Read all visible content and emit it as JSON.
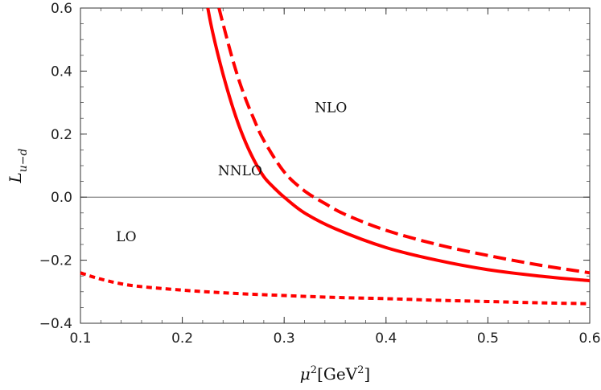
{
  "chart_data": {
    "type": "line",
    "xlim": [
      0.1,
      0.6
    ],
    "ylim": [
      -0.4,
      0.6
    ],
    "x_ticks": [
      "0.1",
      "0.2",
      "0.3",
      "0.4",
      "0.5",
      "0.6"
    ],
    "y_ticks": [
      "-0.4",
      "-0.2",
      "0.0",
      "0.2",
      "0.4",
      "0.6"
    ],
    "xlabel": "μ²[GeV²]",
    "ylabel": "L_{u−d}",
    "grid": false,
    "zero_line": true,
    "color": "#ff0000",
    "series": [
      {
        "name": "NNLO",
        "style": "solid",
        "x": [
          0.225,
          0.23,
          0.24,
          0.25,
          0.26,
          0.27,
          0.28,
          0.29,
          0.3,
          0.32,
          0.35,
          0.4,
          0.45,
          0.5,
          0.55,
          0.6
        ],
        "y": [
          0.6,
          0.52,
          0.39,
          0.28,
          0.19,
          0.12,
          0.065,
          0.03,
          0.0,
          -0.05,
          -0.1,
          -0.16,
          -0.2,
          -0.23,
          -0.25,
          -0.265
        ]
      },
      {
        "name": "NLO",
        "style": "dashed",
        "x": [
          0.236,
          0.24,
          0.25,
          0.26,
          0.27,
          0.28,
          0.3,
          0.32,
          0.34,
          0.36,
          0.4,
          0.45,
          0.5,
          0.55,
          0.6
        ],
        "y": [
          0.6,
          0.55,
          0.43,
          0.33,
          0.25,
          0.18,
          0.08,
          0.02,
          -0.02,
          -0.055,
          -0.105,
          -0.15,
          -0.185,
          -0.215,
          -0.24
        ]
      },
      {
        "name": "LO",
        "style": "dotted",
        "x": [
          0.1,
          0.12,
          0.15,
          0.2,
          0.25,
          0.3,
          0.35,
          0.4,
          0.45,
          0.5,
          0.55,
          0.6
        ],
        "y": [
          -0.24,
          -0.26,
          -0.28,
          -0.295,
          -0.305,
          -0.312,
          -0.318,
          -0.322,
          -0.327,
          -0.331,
          -0.335,
          -0.338
        ]
      }
    ],
    "annotations": [
      {
        "text": "NLO",
        "x": 0.33,
        "y": 0.27
      },
      {
        "text": "NNLO",
        "x": 0.235,
        "y": 0.07
      },
      {
        "text": "LO",
        "x": 0.135,
        "y": -0.14
      }
    ]
  }
}
